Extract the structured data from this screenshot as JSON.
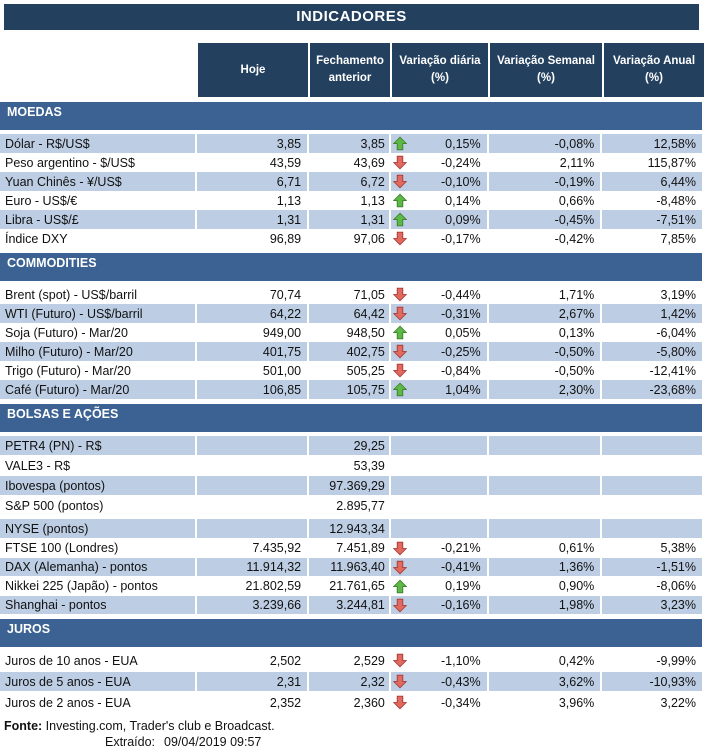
{
  "title": "INDICADORES",
  "columns": [
    "Hoje",
    "Fechamento anterior",
    "Variação diária (%)",
    "Variação Semanal (%)",
    "Variação Anual (%)"
  ],
  "sections": [
    {
      "name": "MOEDAS",
      "rows": [
        {
          "label": "Dólar - R$/US$",
          "hoje": "3,85",
          "fechamento": "3,85",
          "arrow": "up",
          "diaria": "0,15%",
          "semanal": "-0,08%",
          "anual": "12,58%",
          "shaded": true
        },
        {
          "label": "Peso argentino - $/US$",
          "hoje": "43,59",
          "fechamento": "43,69",
          "arrow": "down",
          "diaria": "-0,24%",
          "semanal": "2,11%",
          "anual": "115,87%",
          "shaded": false
        },
        {
          "label": "Yuan Chinês - ¥/US$",
          "hoje": "6,71",
          "fechamento": "6,72",
          "arrow": "down",
          "diaria": "-0,10%",
          "semanal": "-0,19%",
          "anual": "6,44%",
          "shaded": true
        },
        {
          "label": "Euro - US$/€",
          "hoje": "1,13",
          "fechamento": "1,13",
          "arrow": "up",
          "diaria": "0,14%",
          "semanal": "0,66%",
          "anual": "-8,48%",
          "shaded": false
        },
        {
          "label": "Libra - US$/£",
          "hoje": "1,31",
          "fechamento": "1,31",
          "arrow": "up",
          "diaria": "0,09%",
          "semanal": "-0,45%",
          "anual": "-7,51%",
          "shaded": true
        },
        {
          "label": "Índice DXY",
          "hoje": "96,89",
          "fechamento": "97,06",
          "arrow": "down",
          "diaria": "-0,17%",
          "semanal": "-0,42%",
          "anual": "7,85%",
          "shaded": false
        }
      ]
    },
    {
      "name": "COMMODITIES",
      "rows": [
        {
          "label": "Brent (spot) - US$/barril",
          "hoje": "70,74",
          "fechamento": "71,05",
          "arrow": "down",
          "diaria": "-0,44%",
          "semanal": "1,71%",
          "anual": "3,19%",
          "shaded": false
        },
        {
          "label": "WTI (Futuro) - US$/barril",
          "hoje": "64,22",
          "fechamento": "64,42",
          "arrow": "down",
          "diaria": "-0,31%",
          "semanal": "2,67%",
          "anual": "1,42%",
          "shaded": true
        },
        {
          "label": "Soja (Futuro) - Mar/20",
          "hoje": "949,00",
          "fechamento": "948,50",
          "arrow": "up",
          "diaria": "0,05%",
          "semanal": "0,13%",
          "anual": "-6,04%",
          "shaded": false
        },
        {
          "label": "Milho (Futuro) - Mar/20",
          "hoje": "401,75",
          "fechamento": "402,75",
          "arrow": "down",
          "diaria": "-0,25%",
          "semanal": "-0,50%",
          "anual": "-5,80%",
          "shaded": true
        },
        {
          "label": "Trigo (Futuro) - Mar/20",
          "hoje": "501,00",
          "fechamento": "505,25",
          "arrow": "down",
          "diaria": "-0,84%",
          "semanal": "-0,50%",
          "anual": "-12,41%",
          "shaded": false
        },
        {
          "label": "Café (Futuro) - Mar/20",
          "hoje": "106,85",
          "fechamento": "105,75",
          "arrow": "up",
          "diaria": "1,04%",
          "semanal": "2,30%",
          "anual": "-23,68%",
          "shaded": true
        }
      ]
    },
    {
      "name": "BOLSAS E AÇÕES",
      "rows": [
        {
          "label": "PETR4 (PN) - R$",
          "hoje": "",
          "fechamento": "29,25",
          "arrow": null,
          "diaria": "",
          "semanal": "",
          "anual": "",
          "shaded": true
        },
        {
          "label": "VALE3 - R$",
          "hoje": "",
          "fechamento": "53,39",
          "arrow": null,
          "diaria": "",
          "semanal": "",
          "anual": "",
          "shaded": false
        },
        {
          "label": "Ibovespa (pontos)",
          "hoje": "",
          "fechamento": "97.369,29",
          "arrow": null,
          "diaria": "",
          "semanal": "",
          "anual": "",
          "shaded": true
        },
        {
          "label": "S&P 500 (pontos)",
          "hoje": "",
          "fechamento": "2.895,77",
          "arrow": null,
          "diaria": "",
          "semanal": "",
          "anual": "",
          "shaded": false
        },
        {
          "label": "NYSE (pontos)",
          "hoje": "",
          "fechamento": "12.943,34",
          "arrow": null,
          "diaria": "",
          "semanal": "",
          "anual": "",
          "shaded": true,
          "gap_before": true
        },
        {
          "label": "FTSE 100 (Londres)",
          "hoje": "7.435,92",
          "fechamento": "7.451,89",
          "arrow": "down",
          "diaria": "-0,21%",
          "semanal": "0,61%",
          "anual": "5,38%",
          "shaded": false
        },
        {
          "label": "DAX (Alemanha) - pontos",
          "hoje": "11.914,32",
          "fechamento": "11.963,40",
          "arrow": "down",
          "diaria": "-0,41%",
          "semanal": "1,36%",
          "anual": "-1,51%",
          "shaded": true
        },
        {
          "label": "Nikkei 225 (Japão) - pontos",
          "hoje": "21.802,59",
          "fechamento": "21.761,65",
          "arrow": "up",
          "diaria": "0,19%",
          "semanal": "0,90%",
          "anual": "-8,06%",
          "shaded": false
        },
        {
          "label": "Shanghai - pontos",
          "hoje": "3.239,66",
          "fechamento": "3.244,81",
          "arrow": "down",
          "diaria": "-0,16%",
          "semanal": "1,98%",
          "anual": "3,23%",
          "shaded": true
        }
      ]
    },
    {
      "name": "JUROS",
      "rows": [
        {
          "label": "Juros de 10 anos - EUA",
          "hoje": "2,502",
          "fechamento": "2,529",
          "arrow": "down",
          "diaria": "-1,10%",
          "semanal": "0,42%",
          "anual": "-9,99%",
          "shaded": false
        },
        {
          "label": "Juros de 5 anos - EUA",
          "hoje": "2,31",
          "fechamento": "2,32",
          "arrow": "down",
          "diaria": "-0,43%",
          "semanal": "3,62%",
          "anual": "-10,93%",
          "shaded": true
        },
        {
          "label": "Juros de 2 anos - EUA",
          "hoje": "2,352",
          "fechamento": "2,360",
          "arrow": "down",
          "diaria": "-0,34%",
          "semanal": "3,96%",
          "anual": "3,22%",
          "shaded": false
        }
      ]
    }
  ],
  "footer": {
    "fonte_label": "Fonte:",
    "fonte_text": " Investing.com, Trader's club e Broadcast.",
    "extraido_label": "Extraído:",
    "extraido_value": "09/04/2019 09:57"
  },
  "colors": {
    "navy": "#24405F",
    "section-blue": "#3B6292",
    "shade": "#BDCEE4",
    "text": "#111111",
    "arrow-up-fill": "#5CB947",
    "arrow-up-border": "#3F7D2B",
    "arrow-down-fill": "#E2695F",
    "arrow-down-border": "#A63832"
  }
}
